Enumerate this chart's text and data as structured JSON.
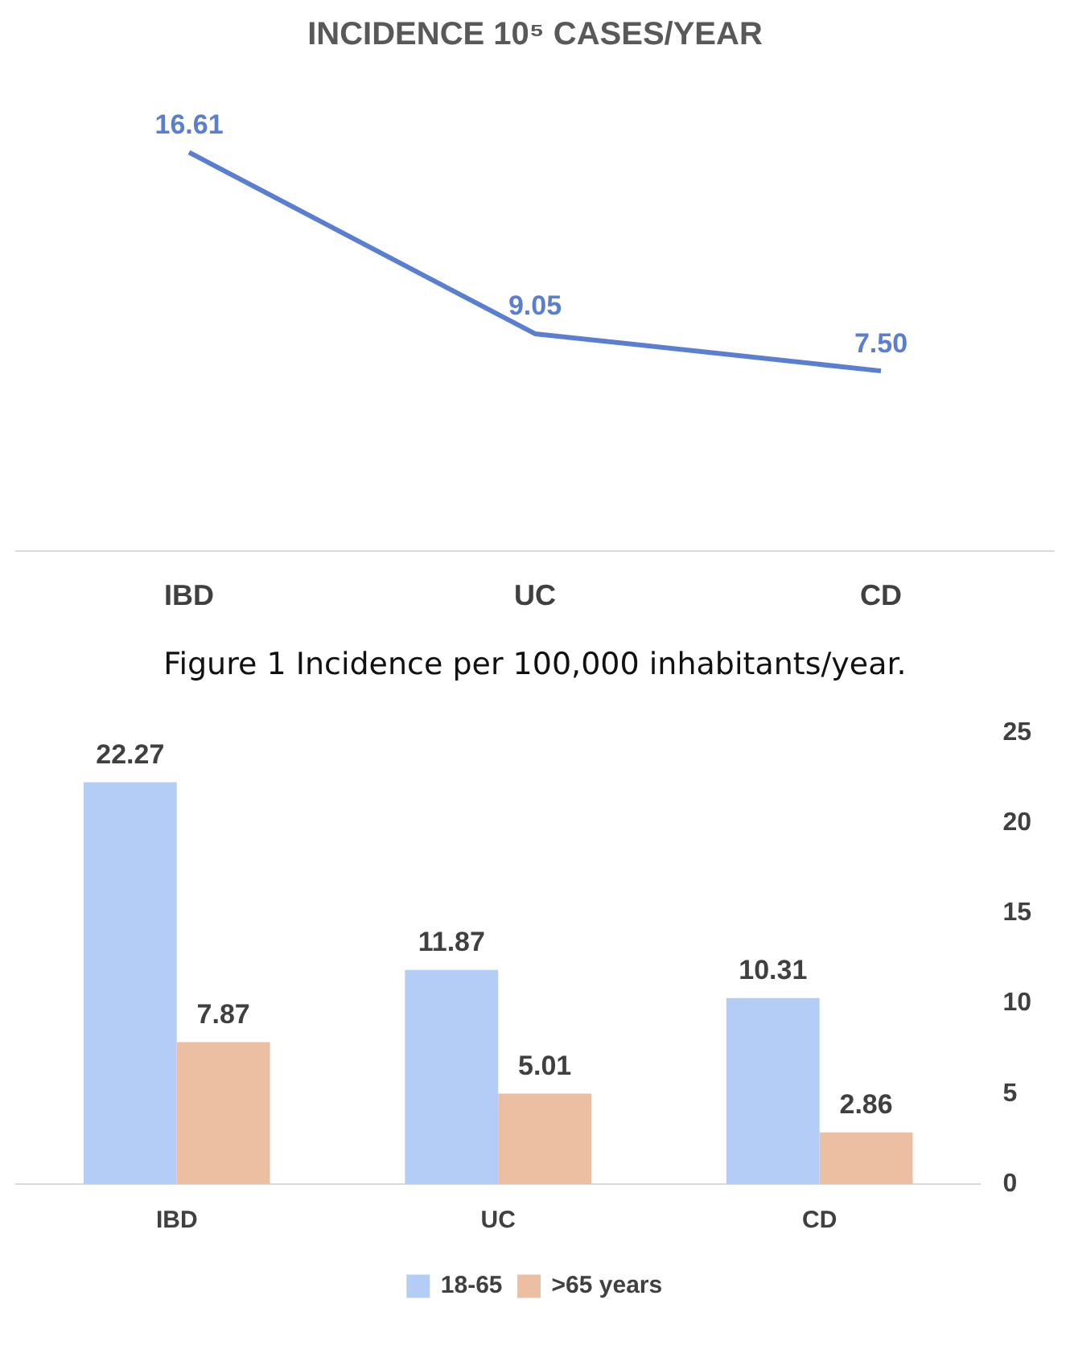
{
  "chart_data": [
    {
      "type": "line",
      "title": "INCIDENCE 10⁵ CASES/YEAR",
      "categories": [
        "IBD",
        "UC",
        "CD"
      ],
      "values": [
        16.61,
        9.05,
        7.5
      ],
      "value_labels": [
        "16.61",
        "9.05",
        "7.50"
      ],
      "color": "#5b7fd0",
      "tick_labels": "x",
      "grid": false,
      "legend": false,
      "marker": "none",
      "line_style": "solid",
      "annotations": [
        "Figure 1     Incidence per 100,000 inhabitants/year."
      ]
    },
    {
      "type": "bar",
      "categories": [
        "IBD",
        "UC",
        "CD"
      ],
      "series": [
        {
          "name": "18-65",
          "color": "#b4cdf7",
          "values": [
            22.27,
            11.87,
            10.31
          ]
        },
        {
          "name": ">65 years",
          "color": "#ecbfa2",
          "values": [
            7.87,
            5.01,
            2.86
          ]
        }
      ],
      "ylim": [
        0,
        25
      ],
      "yticks": [
        0,
        5,
        10,
        15,
        20,
        25
      ],
      "grid": false,
      "legend": "bottom",
      "data_labels": true
    }
  ]
}
